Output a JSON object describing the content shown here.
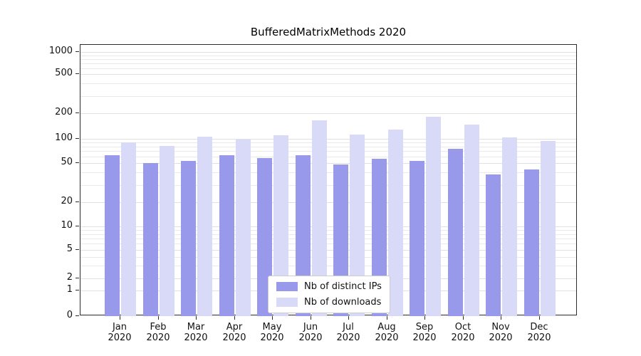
{
  "chart_data": {
    "type": "bar",
    "title": "BufferedMatrixMethods 2020",
    "year_label": "2020",
    "categories": [
      "Jan",
      "Feb",
      "Mar",
      "Apr",
      "May",
      "Jun",
      "Jul",
      "Aug",
      "Sep",
      "Oct",
      "Nov",
      "Dec"
    ],
    "series": [
      {
        "name": "Nb of distinct IPs",
        "color": "#9999ec",
        "values": [
          62,
          50,
          53,
          62,
          58,
          62,
          48,
          57,
          53,
          75,
          38,
          43
        ]
      },
      {
        "name": "Nb of downloads",
        "color": "#d9d9f8",
        "values": [
          90,
          82,
          105,
          98,
          110,
          165,
          112,
          128,
          182,
          148,
          104,
          95
        ]
      }
    ],
    "yticks": [
      0,
      1,
      2,
      5,
      10,
      20,
      50,
      100,
      200,
      500,
      1000
    ],
    "ylim": [
      0,
      1000
    ],
    "scale": "log-like",
    "grid": "horizontal-minor-and-major",
    "legend_position": "lower center"
  }
}
